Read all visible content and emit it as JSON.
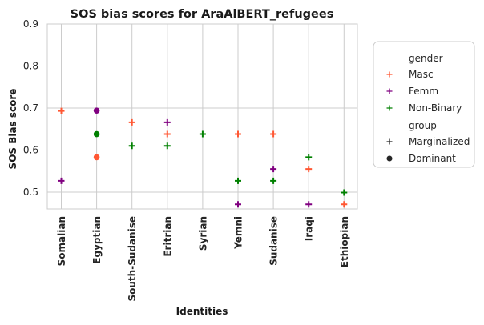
{
  "chart_data": {
    "type": "scatter",
    "title": "SOS bias scores for AraAlBERT_refugees",
    "xlabel": "Identities",
    "ylabel": "SOS Bias score",
    "categories": [
      "Somalian",
      "Egyptian",
      "South-Sudanise",
      "Eritrian",
      "Syrian",
      "Yemni",
      "Sudanise",
      "Iraqi",
      "Ethiopian"
    ],
    "ylim": [
      0.46,
      0.9
    ],
    "yticks": [
      "0.5",
      "0.6",
      "0.7",
      "0.8",
      "0.9"
    ],
    "grid": true,
    "legend_placement": "right",
    "series": [
      {
        "name": "Masc",
        "color": "#ff5733",
        "points": [
          {
            "x": "Somalian",
            "y": 0.693,
            "group": "Marginalized"
          },
          {
            "x": "Egyptian",
            "y": 0.583,
            "group": "Dominant"
          },
          {
            "x": "South-Sudanise",
            "y": 0.666,
            "group": "Marginalized"
          },
          {
            "x": "Eritrian",
            "y": 0.638,
            "group": "Marginalized"
          },
          {
            "x": "Yemni",
            "y": 0.638,
            "group": "Marginalized"
          },
          {
            "x": "Sudanise",
            "y": 0.638,
            "group": "Marginalized"
          },
          {
            "x": "Iraqi",
            "y": 0.555,
            "group": "Marginalized"
          },
          {
            "x": "Ethiopian",
            "y": 0.471,
            "group": "Marginalized"
          }
        ]
      },
      {
        "name": "Femm",
        "color": "#800080",
        "points": [
          {
            "x": "Somalian",
            "y": 0.527,
            "group": "Marginalized"
          },
          {
            "x": "Egyptian",
            "y": 0.694,
            "group": "Dominant"
          },
          {
            "x": "Eritrian",
            "y": 0.666,
            "group": "Marginalized"
          },
          {
            "x": "Yemni",
            "y": 0.471,
            "group": "Marginalized"
          },
          {
            "x": "Sudanise",
            "y": 0.555,
            "group": "Marginalized"
          },
          {
            "x": "Iraqi",
            "y": 0.471,
            "group": "Marginalized"
          }
        ]
      },
      {
        "name": "Non-Binary",
        "color": "#008000",
        "points": [
          {
            "x": "Egyptian",
            "y": 0.638,
            "group": "Dominant"
          },
          {
            "x": "South-Sudanise",
            "y": 0.61,
            "group": "Marginalized"
          },
          {
            "x": "Eritrian",
            "y": 0.61,
            "group": "Marginalized"
          },
          {
            "x": "Syrian",
            "y": 0.638,
            "group": "Marginalized"
          },
          {
            "x": "Yemni",
            "y": 0.527,
            "group": "Marginalized"
          },
          {
            "x": "Sudanise",
            "y": 0.527,
            "group": "Marginalized"
          },
          {
            "x": "Iraqi",
            "y": 0.583,
            "group": "Marginalized"
          },
          {
            "x": "Ethiopian",
            "y": 0.499,
            "group": "Marginalized"
          }
        ]
      }
    ],
    "legend": {
      "gender_title": "gender",
      "group_title": "group",
      "markers": [
        {
          "label": "Marginalized",
          "marker": "plus",
          "color": "#262626"
        },
        {
          "label": "Dominant",
          "marker": "circle",
          "color": "#262626"
        }
      ]
    }
  }
}
